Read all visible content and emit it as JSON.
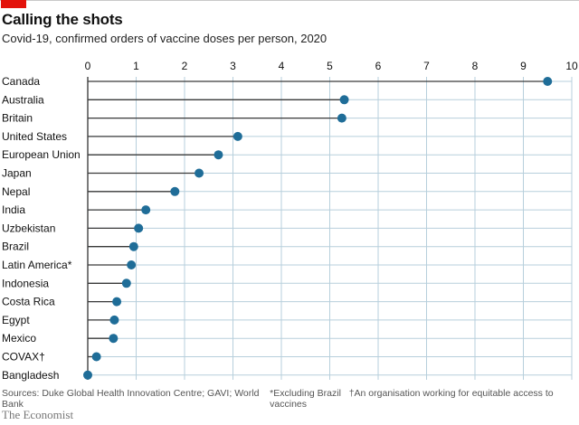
{
  "header": {
    "title": "Calling the shots",
    "subtitle": "Covid-19, confirmed orders of vaccine doses per person, 2020"
  },
  "colors": {
    "accent": "#e3120b",
    "marker": "#1f6d98",
    "grid": "#b7cfdc",
    "stem": "#3a3a3a"
  },
  "chart_data": {
    "type": "lollipop",
    "title": "Calling the shots",
    "subtitle": "Covid-19, confirmed orders of vaccine doses per person, 2020",
    "xlabel": "",
    "ylabel": "",
    "xlim": [
      0,
      10
    ],
    "ticks": [
      "0",
      "1",
      "2",
      "3",
      "4",
      "5",
      "6",
      "7",
      "8",
      "9",
      "10"
    ],
    "grid": true,
    "categories": [
      "Canada",
      "Australia",
      "Britain",
      "United States",
      "European Union",
      "Japan",
      "Nepal",
      "India",
      "Uzbekistan",
      "Brazil",
      "Latin America*",
      "Indonesia",
      "Costa Rica",
      "Egypt",
      "Mexico",
      "COVAX†",
      "Bangladesh"
    ],
    "values": [
      9.5,
      5.3,
      5.25,
      3.1,
      2.7,
      2.3,
      1.8,
      1.2,
      1.05,
      0.95,
      0.9,
      0.8,
      0.6,
      0.55,
      0.53,
      0.18,
      0.0
    ]
  },
  "footer": {
    "sources": "Sources: Duke Global Health Innovation Centre; GAVI; World Bank",
    "note1": "*Excluding Brazil",
    "note2": "†An organisation working for equitable access to vaccines",
    "brand": "The Economist"
  }
}
